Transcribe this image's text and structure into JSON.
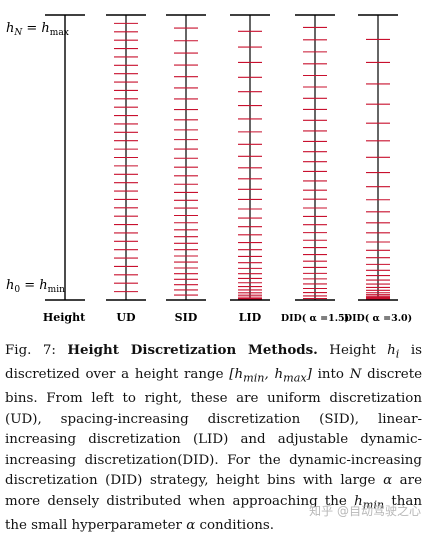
{
  "figure": {
    "top_label": {
      "var": "h",
      "var_sub": "N",
      "eq": " = ",
      "rhs": "h",
      "rhs_sub": "max"
    },
    "bottom_label": {
      "var": "h",
      "var_sub": "0",
      "eq": " = ",
      "rhs": "h",
      "rhs_sub": "min"
    },
    "axis_label": "Height",
    "columns": [
      {
        "label": "UD",
        "method": "uniform",
        "alpha": null
      },
      {
        "label": "SID",
        "method": "spacing-increasing",
        "alpha": null
      },
      {
        "label": "LID",
        "method": "linear-increasing",
        "alpha": null
      },
      {
        "label": "DID( α =1.5)",
        "method": "dynamic-increasing",
        "alpha": 1.5
      },
      {
        "label": "DID( α =3.0)",
        "method": "dynamic-increasing",
        "alpha": 3.0
      }
    ],
    "colors": {
      "axis": "#000000",
      "bin": "#c8102e"
    }
  },
  "caption": {
    "fig_num": "Fig. 7: ",
    "title": "Height Discretization Methods.",
    "text_1": " Height ",
    "math_1": "h",
    "math_1_sub": "i",
    "text_2": " is discretized over a height range ",
    "math_2": "[h",
    "math_2_sub_a": "min",
    "math_2_mid": ", h",
    "math_2_sub_b": "max",
    "math_2_end": "]",
    "text_3": " into ",
    "math_3": "N",
    "text_4": " discrete bins. From left to right, these are uniform discretization (UD), spacing-increasing discretization (SID), linear-increasing discretization (LID) and adjustable dynamic-increasing discretization(DID). For the dynamic-increasing discretization (DID) strategy, height bins with large ",
    "math_4": "α",
    "text_5": " are more densely distributed when approaching the ",
    "math_5": "h",
    "math_5_sub": "min",
    "text_6": " than the small hyperparameter ",
    "math_6": "α",
    "text_7": " conditions."
  },
  "watermark": "知乎 @自动驾驶之心"
}
